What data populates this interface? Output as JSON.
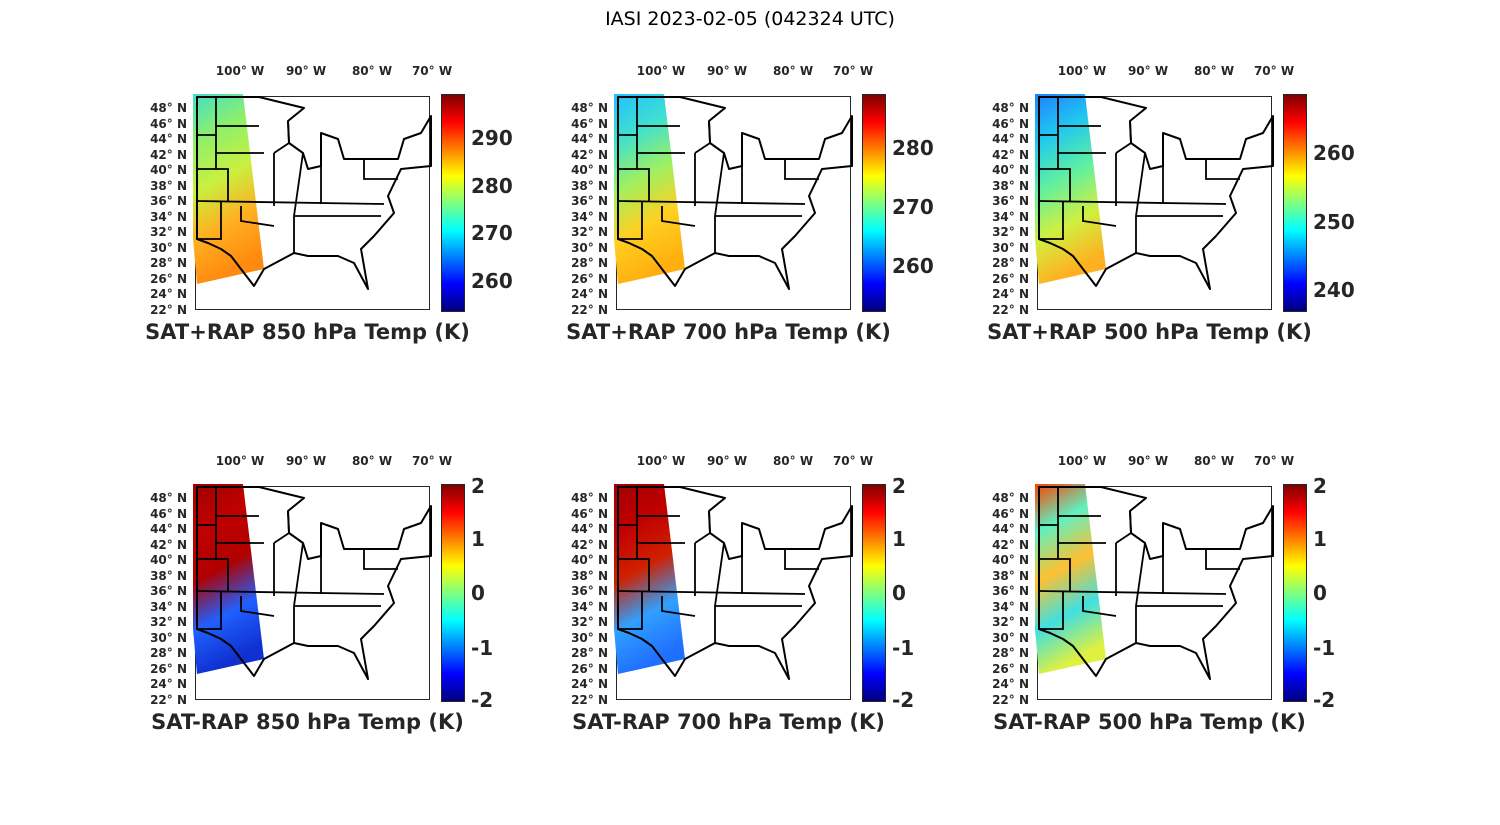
{
  "figure_title": "IASI 2023-02-05 (042324 UTC)",
  "lon_labels": [
    "100° W",
    "90° W",
    "80° W",
    "70° W"
  ],
  "lat_labels": [
    "48° N",
    "46° N",
    "44° N",
    "42° N",
    "40° N",
    "38° N",
    "36° N",
    "34° N",
    "32° N",
    "30° N",
    "28° N",
    "26° N",
    "24° N",
    "22° N"
  ],
  "colormap": [
    "#00007f",
    "#0000ff",
    "#007fff",
    "#00ffff",
    "#7fff7f",
    "#ffff00",
    "#ff7f00",
    "#ff0000",
    "#7f0000"
  ],
  "chart_data": [
    {
      "type": "map",
      "title": "SAT+RAP 850 hPa Temp (K)",
      "clim": [
        253.5,
        299.3
      ],
      "ticks": [
        260,
        270,
        280,
        290
      ],
      "swath_colors": [
        "#3fe0c8",
        "#8fef6a",
        "#c8f040",
        "#ffb020",
        "#ff8a10"
      ]
    },
    {
      "type": "map",
      "title": "SAT+RAP 700 hPa Temp (K)",
      "clim": [
        252.2,
        289.2
      ],
      "ticks": [
        260,
        270,
        280
      ],
      "swath_colors": [
        "#20c0ff",
        "#40e0d0",
        "#a0f060",
        "#ffd020",
        "#ffb010"
      ]
    },
    {
      "type": "map",
      "title": "SAT+RAP 500 hPa Temp (K)",
      "clim": [
        236.8,
        268.6
      ],
      "ticks": [
        240,
        250,
        260
      ],
      "swath_colors": [
        "#2080ff",
        "#20c8f0",
        "#60f0a0",
        "#d0f040",
        "#ffb020"
      ]
    },
    {
      "type": "map",
      "title": "SAT-RAP 850 hPa Temp (K)",
      "clim": [
        -2,
        2
      ],
      "ticks": [
        -2,
        -1,
        0,
        1,
        2
      ],
      "swath_colors": [
        "#a00000",
        "#c00000",
        "#b00000",
        "#2060ff",
        "#1030d0"
      ]
    },
    {
      "type": "map",
      "title": "SAT-RAP 700 hPa Temp (K)",
      "clim": [
        -2,
        2
      ],
      "ticks": [
        -2,
        -1,
        0,
        1,
        2
      ],
      "swath_colors": [
        "#a00000",
        "#c00000",
        "#d02000",
        "#30a0ff",
        "#2070ff"
      ]
    },
    {
      "type": "map",
      "title": "SAT-RAP 500 hPa Temp (K)",
      "clim": [
        -2,
        2
      ],
      "ticks": [
        -2,
        -1,
        0,
        1,
        2
      ],
      "swath_colors": [
        "#ff4000",
        "#60f0c0",
        "#ffc030",
        "#40e0e0",
        "#e0f040"
      ]
    }
  ]
}
